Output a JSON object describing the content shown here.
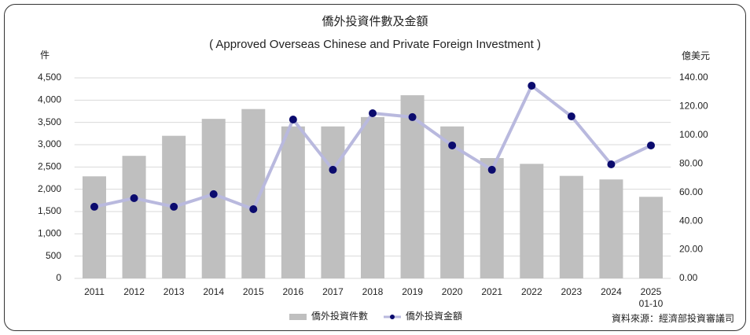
{
  "chart_data": {
    "type": "bar_line",
    "title": "僑外投資件數及金額",
    "subtitle": "( Approved Overseas Chinese and Private Foreign Investment )",
    "y_label": "件",
    "y2_label": "億美元",
    "source": "資料來源：經濟部投資審議司",
    "categories": [
      "2011",
      "2012",
      "2013",
      "2014",
      "2015",
      "2016",
      "2017",
      "2018",
      "2019",
      "2020",
      "2021",
      "2022",
      "2023",
      "2024",
      "2025\n01-10"
    ],
    "series": [
      {
        "name": "僑外投資件數",
        "type": "bar",
        "color": "#bfbfbf",
        "values": [
          2290,
          2750,
          3200,
          3580,
          3800,
          3410,
          3410,
          3620,
          4110,
          3410,
          2700,
          2570,
          2300,
          2220,
          1830
        ]
      },
      {
        "name": "僑外投資金額",
        "type": "line",
        "axis": "y2",
        "color": "#b9b9de",
        "marker_color": "#0b0b6e",
        "values": [
          50.0,
          56.0,
          50.0,
          58.8,
          48.3,
          110.9,
          75.8,
          115.3,
          112.6,
          92.8,
          75.8,
          134.5,
          113.1,
          79.6,
          92.8
        ]
      }
    ],
    "ylim": [
      0,
      4500
    ],
    "yticks": [
      0,
      500,
      {
        "value": 1000,
        "label": "1,000"
      },
      {
        "value": 1500,
        "label": "1,500"
      },
      {
        "value": 2000,
        "label": "2,000"
      },
      {
        "value": 2500,
        "label": "2,500"
      },
      {
        "value": 3000,
        "label": "3,000"
      },
      {
        "value": 3500,
        "label": "3,500"
      },
      {
        "value": 4000,
        "label": "4,000"
      },
      {
        "value": 4500,
        "label": "4,500"
      }
    ],
    "y2lim": [
      0,
      140
    ],
    "y2ticks": [
      {
        "value": 0,
        "label": "0.00"
      },
      {
        "value": 20,
        "label": "20.00"
      },
      {
        "value": 40,
        "label": "40.00"
      },
      {
        "value": 60,
        "label": "60.00"
      },
      {
        "value": 80,
        "label": "80.00"
      },
      {
        "value": 100,
        "label": "100.00"
      },
      {
        "value": 120,
        "label": "120.00"
      },
      {
        "value": 140,
        "label": "140.00"
      }
    ],
    "grid": true,
    "legend": "bottom"
  }
}
